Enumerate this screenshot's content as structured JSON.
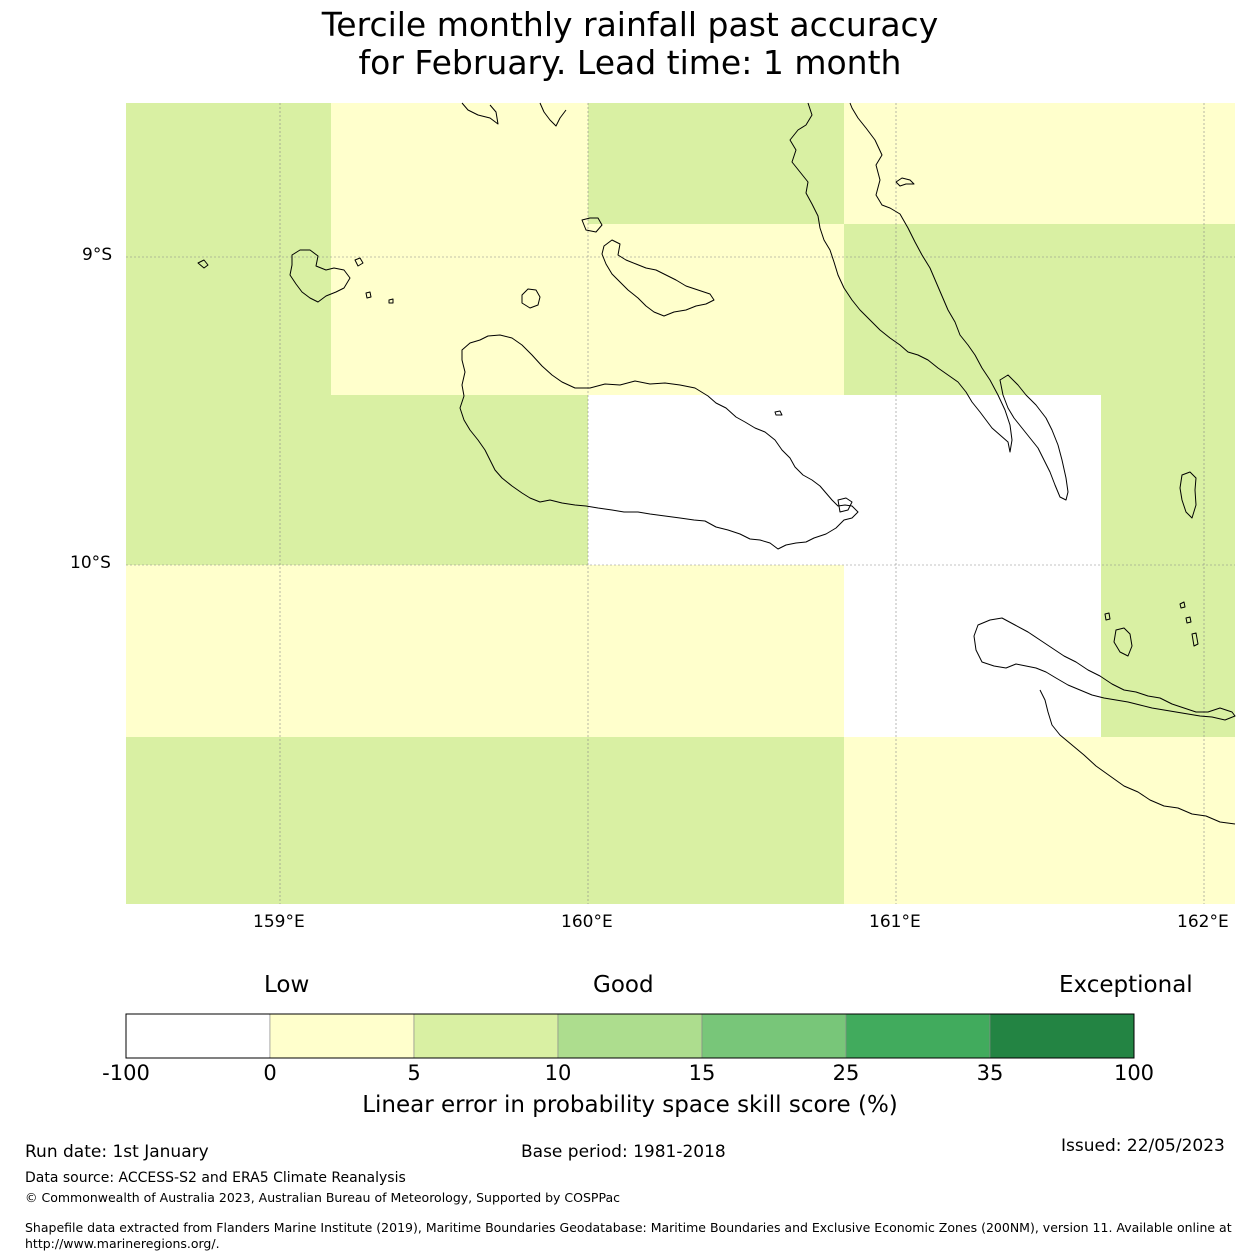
{
  "title": {
    "line1": "Tercile monthly rainfall past accuracy",
    "line2": "for February. Lead time: 1 month"
  },
  "map": {
    "latitude_labels": [
      "9°S",
      "10°S"
    ],
    "longitude_labels": [
      "159°E",
      "160°E",
      "161°E",
      "162°E"
    ],
    "extent": {
      "lon_min": 158.5,
      "lon_max": 162.1,
      "lat_min": -11.1,
      "lat_max": -8.5
    },
    "colors": {
      "white": "#ffffff",
      "light_yellow": "#ffffcc",
      "light_green": "#d9f0a3",
      "coastline": "#000000"
    }
  },
  "colorbar": {
    "category_labels": {
      "low": "Low",
      "good": "Good",
      "exceptional": "Exceptional"
    },
    "tick_labels": [
      "-100",
      "0",
      "5",
      "10",
      "15",
      "25",
      "35",
      "100"
    ],
    "bins": [
      {
        "from": -100,
        "to": 0,
        "color": "#ffffff"
      },
      {
        "from": 0,
        "to": 5,
        "color": "#ffffcc"
      },
      {
        "from": 5,
        "to": 10,
        "color": "#d9f0a3"
      },
      {
        "from": 10,
        "to": 15,
        "color": "#addd8e"
      },
      {
        "from": 15,
        "to": 25,
        "color": "#78c679"
      },
      {
        "from": 25,
        "to": 35,
        "color": "#41ab5d"
      },
      {
        "from": 35,
        "to": 100,
        "color": "#238443"
      }
    ],
    "title": "Linear error in probability space skill score (%)"
  },
  "footer": {
    "run_date": "Run date: 1st January",
    "base_period": "Base period: 1981-2018",
    "issued": "Issued: 22/05/2023",
    "data_source": "Data source: ACCESS-S2 and ERA5 Climate Reanalysis",
    "copyright": "© Commonwealth of Australia 2023, Australian Bureau of Meteorology, Supported by COSPPac",
    "shapefile_line1": "Shapefile data extracted from Flanders Marine Institute (2019), Maritime Boundaries Geodatabase: Maritime Boundaries and Exclusive Economic Zones (200NM), version 11. Available online at",
    "shapefile_line2": "http://www.marineregions.org/."
  }
}
